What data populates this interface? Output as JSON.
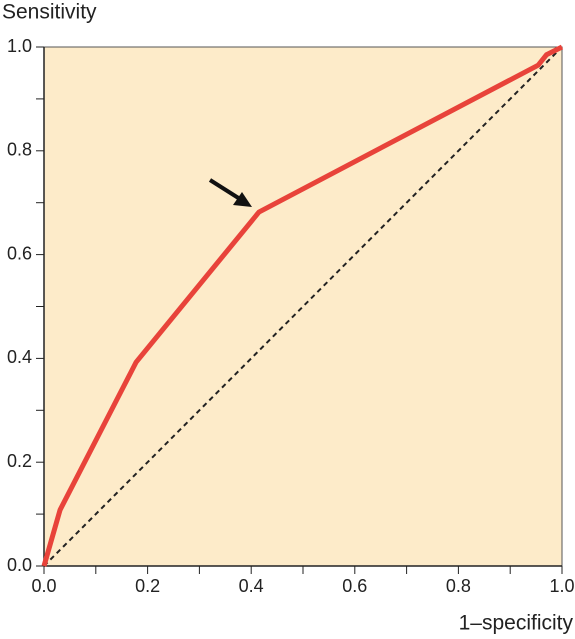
{
  "chart_data": {
    "type": "line",
    "ylabel": "Sensitivity",
    "xlabel": "1–specificity",
    "background": "#fdebc9",
    "xlim": [
      0,
      1
    ],
    "ylim": [
      0,
      1
    ],
    "xticks": [
      {
        "value": 0,
        "label": "0.0"
      },
      {
        "value": 0.2,
        "label": "0.2"
      },
      {
        "value": 0.4,
        "label": "0.4"
      },
      {
        "value": 0.6,
        "label": "0.6"
      },
      {
        "value": 0.8,
        "label": "0.8"
      },
      {
        "value": 1,
        "label": "1.0"
      }
    ],
    "yticks": [
      {
        "value": 0,
        "label": "0.0"
      },
      {
        "value": 0.2,
        "label": "0.2"
      },
      {
        "value": 0.4,
        "label": "0.4"
      },
      {
        "value": 0.6,
        "label": "0.6"
      },
      {
        "value": 0.8,
        "label": "0.8"
      },
      {
        "value": 1,
        "label": "1.0"
      }
    ],
    "xminor": [
      0.1,
      0.3,
      0.5,
      0.7,
      0.9
    ],
    "yminor": [
      0.1,
      0.3,
      0.5,
      0.7,
      0.9
    ],
    "series": [
      {
        "color": "#e8433a",
        "x": [
          0,
          0.031,
          0.178,
          0.415,
          0.954,
          0.97,
          1
        ],
        "values": [
          0,
          0.108,
          0.393,
          0.682,
          0.965,
          0.985,
          1
        ]
      },
      {
        "color": "#222222",
        "dashed": true,
        "x": [
          0,
          1
        ],
        "values": [
          0,
          1
        ]
      }
    ]
  }
}
